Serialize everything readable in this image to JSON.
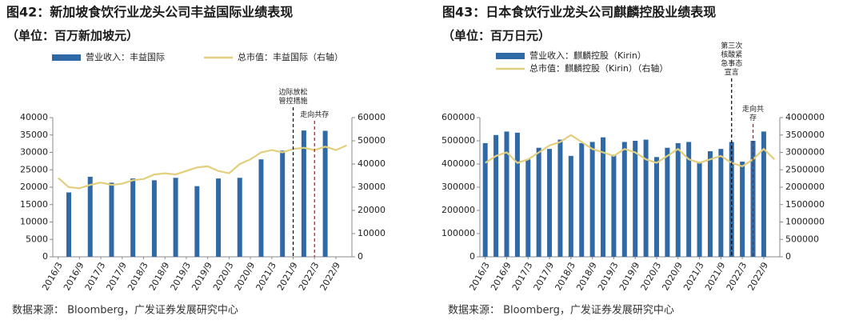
{
  "chart_data": [
    {
      "type": "bar_line",
      "title": "图42：新加坡食饮行业龙头公司丰益国际业绩表现",
      "subtitle": "（单位：百万新加坡元）",
      "source": "数据来源：  Bloomberg，广发证券发展研究中心",
      "categories": [
        "2016/3",
        null,
        "2016/9",
        null,
        "2017/3",
        null,
        "2017/9",
        null,
        "2018/3",
        null,
        "2018/9",
        null,
        "2019/3",
        null,
        "2019/9",
        null,
        "2020/3",
        null,
        "2020/9",
        null,
        "2021/3",
        null,
        "2021/9",
        null,
        "2022/3",
        null,
        "2022/9",
        null
      ],
      "series": [
        {
          "name": "营业收入：丰益国际",
          "type": "bar",
          "color": "#2f6aa6",
          "values": [
            null,
            18500,
            null,
            23000,
            null,
            21300,
            null,
            22500,
            null,
            22000,
            null,
            22700,
            null,
            20300,
            null,
            22500,
            null,
            22700,
            null,
            28000,
            null,
            30500,
            null,
            36300,
            null,
            36200,
            null,
            null
          ]
        },
        {
          "name": "总市值：丰益国际（右轴）",
          "type": "line",
          "axis": "y2",
          "color": "#e2cf7d",
          "values": [
            34000,
            30000,
            29500,
            31000,
            32000,
            31000,
            31500,
            33000,
            33500,
            35500,
            36000,
            35500,
            37000,
            38500,
            39000,
            37000,
            36000,
            40000,
            42000,
            45000,
            46000,
            45000,
            46500,
            47000,
            46000,
            47500,
            46000,
            48000
          ]
        }
      ],
      "ylim": [
        0,
        40000
      ],
      "yticks": [
        0,
        5000,
        10000,
        15000,
        20000,
        25000,
        30000,
        35000,
        40000
      ],
      "y2lim": [
        0,
        60000
      ],
      "y2ticks": [
        0,
        10000,
        20000,
        30000,
        40000,
        50000,
        60000
      ],
      "legend": "top",
      "annotations": [
        {
          "text": "边际放松管控措施",
          "category_index": 22,
          "color": "#000000"
        },
        {
          "text": "走向共存",
          "category_index": 24,
          "color": "#e00000"
        }
      ]
    },
    {
      "type": "bar_line",
      "title": "图43：日本食饮行业龙头公司麒麟控股业绩表现",
      "subtitle": "（单位：百万日元）",
      "source": "数据来源：  Bloomberg，广发证券发展研究中心",
      "categories": [
        "2016/3",
        null,
        "2016/9",
        null,
        "2017/3",
        null,
        "2017/9",
        null,
        "2018/3",
        null,
        "2018/9",
        null,
        "2019/3",
        null,
        "2019/9",
        null,
        "2020/3",
        null,
        "2020/9",
        null,
        "2021/3",
        null,
        "2021/9",
        null,
        "2022/3",
        null,
        "2022/9",
        null
      ],
      "series": [
        {
          "name": "营业收入：麒麟控股（Kirin）",
          "type": "bar",
          "color": "#2f6aa6",
          "values": [
            490000,
            525000,
            540000,
            535000,
            420000,
            470000,
            465000,
            505000,
            435000,
            490000,
            495000,
            515000,
            440000,
            495000,
            500000,
            505000,
            430000,
            470000,
            490000,
            495000,
            410000,
            455000,
            465000,
            495000,
            410000,
            500000,
            540000,
            null
          ]
        },
        {
          "name": "总市值：麒麟控股（Kirin）（右轴）",
          "type": "line",
          "axis": "y2",
          "color": "#e2cf7d",
          "values": [
            2700000,
            2900000,
            3000000,
            2700000,
            2800000,
            3000000,
            3200000,
            3300000,
            3500000,
            3300000,
            3100000,
            3000000,
            2900000,
            3100000,
            3000000,
            2800000,
            2700000,
            2900000,
            3100000,
            2800000,
            2700000,
            2800000,
            2900000,
            2700000,
            2600000,
            2800000,
            3100000,
            2800000
          ]
        }
      ],
      "ylim": [
        0,
        600000
      ],
      "yticks": [
        0,
        100000,
        200000,
        300000,
        400000,
        500000,
        600000
      ],
      "y2lim": [
        0,
        4000000
      ],
      "y2ticks": [
        0,
        500000,
        1000000,
        1500000,
        2000000,
        2500000,
        3000000,
        3500000,
        4000000
      ],
      "legend": "top-stacked",
      "annotations": [
        {
          "text": "第三次核酸紧急事态宣言",
          "category_index": 23,
          "color": "#000000"
        },
        {
          "text": "走向共存",
          "category_index": 25,
          "color": "#e00000"
        }
      ]
    }
  ]
}
